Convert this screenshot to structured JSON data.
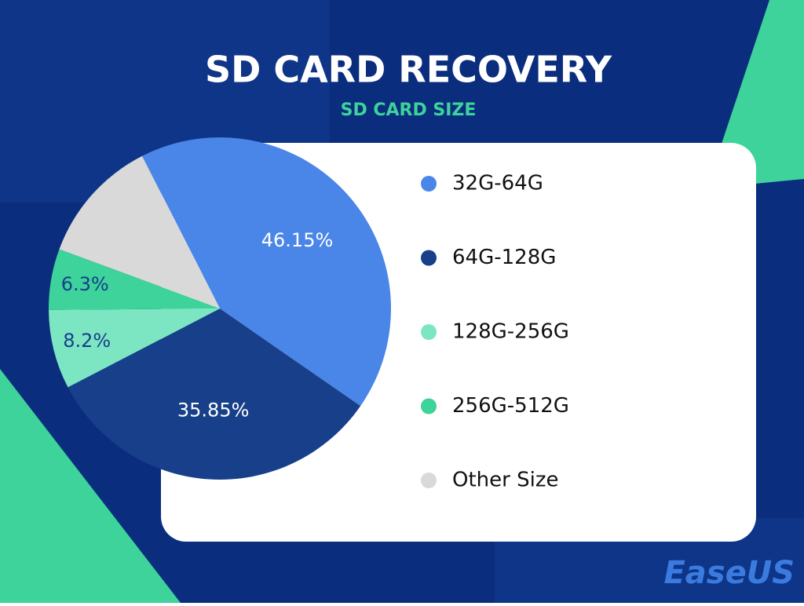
{
  "chart_data": {
    "type": "pie",
    "title": "SD CARD RECOVERY",
    "subtitle": "SD CARD SIZE",
    "categories": [
      "32G-64G",
      "64G-128G",
      "128G-256G",
      "256G-512G",
      "Other Size"
    ],
    "values": [
      46.15,
      35.85,
      8.2,
      6.3,
      13
    ],
    "value_labels": [
      "46.15%",
      "35.85%",
      "8.2%",
      "6.3%",
      null
    ],
    "colors": [
      "#4a86e8",
      "#173f8a",
      "#7ce6c3",
      "#3dd39b",
      "#d9d9d9"
    ],
    "legend": "right"
  },
  "brand": "EaseUS"
}
